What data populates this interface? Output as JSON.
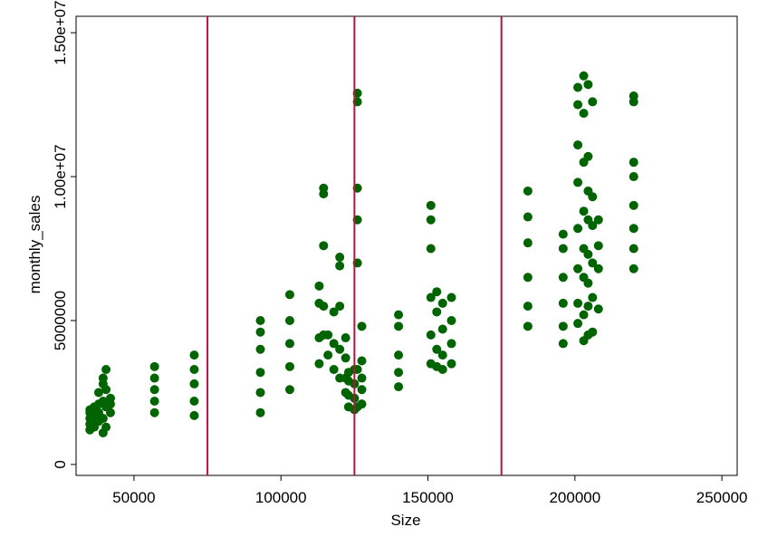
{
  "chart_data": {
    "type": "scatter",
    "x_label": "Size",
    "y_label": "monthly_sales",
    "x": [
      35000,
      35000,
      35000,
      35000,
      35000,
      36500,
      36500,
      36500,
      36500,
      38000,
      38000,
      38000,
      38000,
      39500,
      39500,
      39500,
      39500,
      39500,
      40500,
      40500,
      40500,
      40500,
      42000,
      42000,
      42000,
      57000,
      57000,
      57000,
      57000,
      57000,
      70500,
      70500,
      70500,
      70500,
      70500,
      93000,
      93000,
      93000,
      93000,
      93000,
      93000,
      103000,
      103000,
      103000,
      103000,
      103000,
      113000,
      113000,
      113000,
      113000,
      114500,
      114500,
      114500,
      114500,
      114500,
      116000,
      116000,
      118000,
      118000,
      118000,
      120000,
      120000,
      120000,
      120000,
      120000,
      122000,
      122000,
      122000,
      122000,
      123000,
      123000,
      123000,
      123000,
      125000,
      125000,
      125000,
      125000,
      126000,
      126000,
      126000,
      126000,
      126000,
      126000,
      126000,
      127500,
      127500,
      127500,
      127500,
      127500,
      140000,
      140000,
      140000,
      140000,
      140000,
      151000,
      151000,
      151000,
      151000,
      151000,
      151000,
      153000,
      153000,
      153000,
      153000,
      155000,
      155000,
      155000,
      155000,
      158000,
      158000,
      158000,
      158000,
      184000,
      184000,
      184000,
      184000,
      184000,
      184000,
      196000,
      196000,
      196000,
      196000,
      196000,
      196000,
      201000,
      201000,
      201000,
      201000,
      201000,
      201000,
      201000,
      201000,
      203000,
      203000,
      203000,
      203000,
      203000,
      203000,
      203000,
      203000,
      204500,
      204500,
      204500,
      204500,
      204500,
      204500,
      204500,
      204500,
      206000,
      206000,
      206000,
      206000,
      206000,
      206000,
      208000,
      208000,
      208000,
      208000,
      220000,
      220000,
      220000,
      220000,
      220000,
      220000,
      220000,
      220000
    ],
    "values": [
      1200000,
      1400000,
      1600000,
      1800000,
      1900000,
      1300000,
      1500000,
      1700000,
      2000000,
      1500000,
      1800000,
      2100000,
      2500000,
      1100000,
      1600000,
      2200000,
      2800000,
      3000000,
      1300000,
      2000000,
      2600000,
      3300000,
      1800000,
      2100000,
      2300000,
      1800000,
      2200000,
      2600000,
      3000000,
      3400000,
      1700000,
      2200000,
      2800000,
      3300000,
      3800000,
      1800000,
      2500000,
      3200000,
      4000000,
      4600000,
      5000000,
      2600000,
      3400000,
      4200000,
      5000000,
      5900000,
      3500000,
      4400000,
      5600000,
      6200000,
      4500000,
      5500000,
      7600000,
      9600000,
      9400000,
      3800000,
      4500000,
      3300000,
      4200000,
      5300000,
      3000000,
      4000000,
      5500000,
      7200000,
      6900000,
      2500000,
      3000000,
      3700000,
      4400000,
      2000000,
      2400000,
      2900000,
      3200000,
      1900000,
      2300000,
      2800000,
      3300000,
      2000000,
      3300000,
      7000000,
      8500000,
      9600000,
      12600000,
      12900000,
      2100000,
      2600000,
      3000000,
      3600000,
      4800000,
      2700000,
      3200000,
      3800000,
      4800000,
      5200000,
      3500000,
      4500000,
      5800000,
      7500000,
      8500000,
      9000000,
      3400000,
      4000000,
      5300000,
      6000000,
      3300000,
      3800000,
      4700000,
      5600000,
      3500000,
      4200000,
      5000000,
      5800000,
      4800000,
      5500000,
      6500000,
      7700000,
      8600000,
      9500000,
      4200000,
      4800000,
      5600000,
      6500000,
      7500000,
      8000000,
      4900000,
      5600000,
      6800000,
      8200000,
      9800000,
      11100000,
      12500000,
      13100000,
      4300000,
      5200000,
      6500000,
      7500000,
      8800000,
      10500000,
      12200000,
      13500000,
      4500000,
      5500000,
      6300000,
      7300000,
      8500000,
      9500000,
      10700000,
      13200000,
      4600000,
      5800000,
      7000000,
      8300000,
      9300000,
      12600000,
      5400000,
      6800000,
      7600000,
      8500000,
      6800000,
      7500000,
      8200000,
      9000000,
      10000000,
      10500000,
      12600000,
      12800000
    ],
    "color": "#006400",
    "vlines": [
      75000,
      125000,
      175000
    ],
    "vline_color": "#b5123e",
    "xlim": [
      30300,
      255200
    ],
    "xticks": [
      50000,
      100000,
      150000,
      200000,
      250000
    ],
    "ylim": [
      -380000,
      15570000
    ],
    "yticks": [
      0,
      5000000,
      {
        "value": 10000000,
        "label": "1.00e+07"
      },
      {
        "value": 15000000,
        "label": "1.50e+07"
      }
    ]
  }
}
